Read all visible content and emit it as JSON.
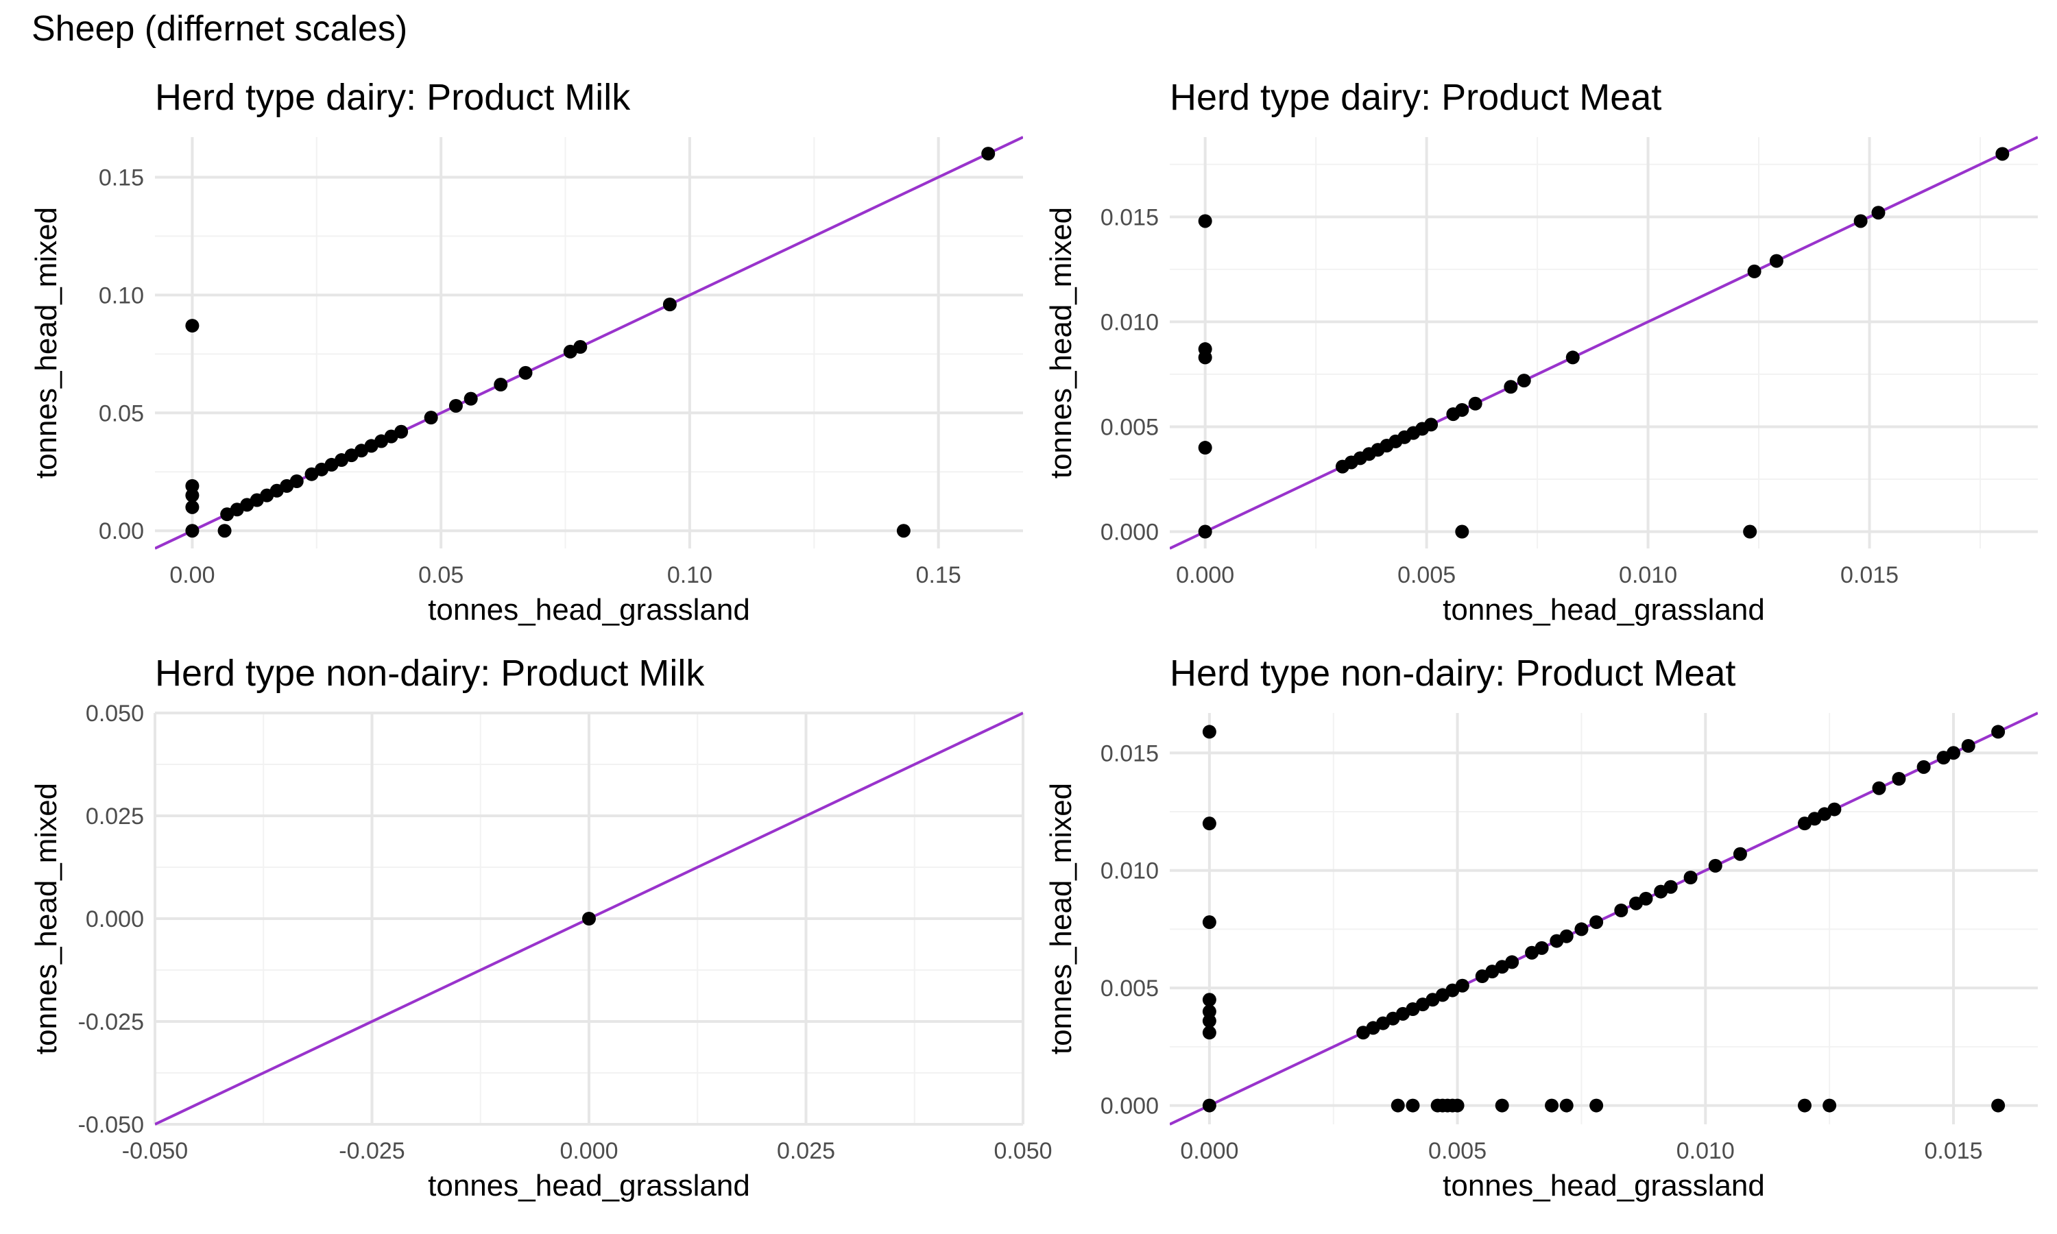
{
  "title": "Sheep (differnet scales)",
  "colors": {
    "line": "#9933cc",
    "point": "#000000",
    "grid_major": "#e6e6e6",
    "grid_minor": "#f2f2f2"
  },
  "chart_data": [
    {
      "type": "scatter",
      "title": "Herd type dairy: Product Milk",
      "xlabel": "tonnes_head_grassland",
      "ylabel": "tonnes_head_mixed",
      "xlim": [
        -0.0075,
        0.167
      ],
      "ylim": [
        -0.0075,
        0.167
      ],
      "xticks": [
        0,
        0.05,
        0.1,
        0.15
      ],
      "yticks": [
        0,
        0.05,
        0.1,
        0.15
      ],
      "tick_labels_x": [
        "0.00",
        "0.05",
        "0.10",
        "0.15"
      ],
      "tick_labels_y": [
        "0.00",
        "0.05",
        "0.10",
        "0.15"
      ],
      "reference_line": "y = x",
      "grid": true,
      "points": [
        [
          0,
          0
        ],
        [
          0,
          0.01
        ],
        [
          0,
          0.015
        ],
        [
          0,
          0.019
        ],
        [
          0,
          0.087
        ],
        [
          0.0065,
          0
        ],
        [
          0.143,
          0
        ],
        [
          0.007,
          0.007
        ],
        [
          0.009,
          0.009
        ],
        [
          0.011,
          0.011
        ],
        [
          0.013,
          0.013
        ],
        [
          0.015,
          0.015
        ],
        [
          0.017,
          0.017
        ],
        [
          0.019,
          0.019
        ],
        [
          0.021,
          0.021
        ],
        [
          0.024,
          0.024
        ],
        [
          0.026,
          0.026
        ],
        [
          0.028,
          0.028
        ],
        [
          0.03,
          0.03
        ],
        [
          0.032,
          0.032
        ],
        [
          0.034,
          0.034
        ],
        [
          0.036,
          0.036
        ],
        [
          0.038,
          0.038
        ],
        [
          0.04,
          0.04
        ],
        [
          0.042,
          0.042
        ],
        [
          0.048,
          0.048
        ],
        [
          0.053,
          0.053
        ],
        [
          0.056,
          0.056
        ],
        [
          0.062,
          0.062
        ],
        [
          0.067,
          0.067
        ],
        [
          0.076,
          0.076
        ],
        [
          0.078,
          0.078
        ],
        [
          0.096,
          0.096
        ],
        [
          0.16,
          0.16
        ]
      ]
    },
    {
      "type": "scatter",
      "title": "Herd type dairy: Product Meat",
      "xlabel": "tonnes_head_grassland",
      "ylabel": "tonnes_head_mixed",
      "xlim": [
        -0.0008,
        0.0188
      ],
      "ylim": [
        -0.0008,
        0.0188
      ],
      "xticks": [
        0,
        0.005,
        0.01,
        0.015
      ],
      "yticks": [
        0,
        0.005,
        0.01,
        0.015
      ],
      "tick_labels_x": [
        "0.000",
        "0.005",
        "0.010",
        "0.015"
      ],
      "tick_labels_y": [
        "0.000",
        "0.005",
        "0.010",
        "0.015"
      ],
      "reference_line": "y = x",
      "grid": true,
      "points": [
        [
          0,
          0
        ],
        [
          0,
          0.004
        ],
        [
          0,
          0.0083
        ],
        [
          0,
          0.0087
        ],
        [
          0,
          0.0148
        ],
        [
          0.0058,
          0
        ],
        [
          0.0123,
          0
        ],
        [
          0.0031,
          0.0031
        ],
        [
          0.0033,
          0.0033
        ],
        [
          0.0035,
          0.0035
        ],
        [
          0.0037,
          0.0037
        ],
        [
          0.0039,
          0.0039
        ],
        [
          0.0041,
          0.0041
        ],
        [
          0.0043,
          0.0043
        ],
        [
          0.0045,
          0.0045
        ],
        [
          0.0047,
          0.0047
        ],
        [
          0.0049,
          0.0049
        ],
        [
          0.0051,
          0.0051
        ],
        [
          0.0056,
          0.0056
        ],
        [
          0.0058,
          0.0058
        ],
        [
          0.0061,
          0.0061
        ],
        [
          0.0069,
          0.0069
        ],
        [
          0.0072,
          0.0072
        ],
        [
          0.0083,
          0.0083
        ],
        [
          0.0124,
          0.0124
        ],
        [
          0.0129,
          0.0129
        ],
        [
          0.0148,
          0.0148
        ],
        [
          0.0152,
          0.0152
        ],
        [
          0.018,
          0.018
        ]
      ]
    },
    {
      "type": "scatter",
      "title": "Herd type non-dairy: Product Milk",
      "xlabel": "tonnes_head_grassland",
      "ylabel": "tonnes_head_mixed",
      "xlim": [
        -0.05,
        0.05
      ],
      "ylim": [
        -0.05,
        0.05
      ],
      "xticks": [
        -0.05,
        -0.025,
        0,
        0.025,
        0.05
      ],
      "yticks": [
        -0.05,
        -0.025,
        0,
        0.025,
        0.05
      ],
      "tick_labels_x": [
        "-0.050",
        "-0.025",
        "0.000",
        "0.025",
        "0.050"
      ],
      "tick_labels_y": [
        "-0.050",
        "-0.025",
        "0.000",
        "0.025",
        "0.050"
      ],
      "reference_line": "y = x",
      "grid": true,
      "points": [
        [
          0,
          0
        ]
      ]
    },
    {
      "type": "scatter",
      "title": "Herd type non-dairy: Product Meat",
      "xlabel": "tonnes_head_grassland",
      "ylabel": "tonnes_head_mixed",
      "xlim": [
        -0.0008,
        0.0167
      ],
      "ylim": [
        -0.0008,
        0.0167
      ],
      "xticks": [
        0,
        0.005,
        0.01,
        0.015
      ],
      "yticks": [
        0,
        0.005,
        0.01,
        0.015
      ],
      "tick_labels_x": [
        "0.000",
        "0.005",
        "0.010",
        "0.015"
      ],
      "tick_labels_y": [
        "0.000",
        "0.005",
        "0.010",
        "0.015"
      ],
      "reference_line": "y = x",
      "grid": true,
      "points": [
        [
          0,
          0
        ],
        [
          0,
          0.0031
        ],
        [
          0,
          0.0036
        ],
        [
          0,
          0.004
        ],
        [
          0,
          0.0045
        ],
        [
          0,
          0.0078
        ],
        [
          0,
          0.012
        ],
        [
          0,
          0.0159
        ],
        [
          0.0038,
          0
        ],
        [
          0.0041,
          0
        ],
        [
          0.0046,
          0
        ],
        [
          0.0047,
          0
        ],
        [
          0.0048,
          0
        ],
        [
          0.0049,
          0
        ],
        [
          0.005,
          0
        ],
        [
          0.0059,
          0
        ],
        [
          0.0069,
          0
        ],
        [
          0.0072,
          0
        ],
        [
          0.0078,
          0
        ],
        [
          0.012,
          0
        ],
        [
          0.0125,
          0
        ],
        [
          0.0159,
          0
        ],
        [
          0.0031,
          0.0031
        ],
        [
          0.0033,
          0.0033
        ],
        [
          0.0035,
          0.0035
        ],
        [
          0.0037,
          0.0037
        ],
        [
          0.0039,
          0.0039
        ],
        [
          0.0041,
          0.0041
        ],
        [
          0.0043,
          0.0043
        ],
        [
          0.0045,
          0.0045
        ],
        [
          0.0047,
          0.0047
        ],
        [
          0.0049,
          0.0049
        ],
        [
          0.0051,
          0.0051
        ],
        [
          0.0055,
          0.0055
        ],
        [
          0.0057,
          0.0057
        ],
        [
          0.0059,
          0.0059
        ],
        [
          0.0061,
          0.0061
        ],
        [
          0.0065,
          0.0065
        ],
        [
          0.0067,
          0.0067
        ],
        [
          0.007,
          0.007
        ],
        [
          0.0072,
          0.0072
        ],
        [
          0.0075,
          0.0075
        ],
        [
          0.0078,
          0.0078
        ],
        [
          0.0083,
          0.0083
        ],
        [
          0.0086,
          0.0086
        ],
        [
          0.0088,
          0.0088
        ],
        [
          0.0091,
          0.0091
        ],
        [
          0.0093,
          0.0093
        ],
        [
          0.0097,
          0.0097
        ],
        [
          0.0102,
          0.0102
        ],
        [
          0.0107,
          0.0107
        ],
        [
          0.012,
          0.012
        ],
        [
          0.0122,
          0.0122
        ],
        [
          0.0124,
          0.0124
        ],
        [
          0.0126,
          0.0126
        ],
        [
          0.0135,
          0.0135
        ],
        [
          0.0139,
          0.0139
        ],
        [
          0.0144,
          0.0144
        ],
        [
          0.0148,
          0.0148
        ],
        [
          0.015,
          0.015
        ],
        [
          0.0153,
          0.0153
        ],
        [
          0.0159,
          0.0159
        ]
      ]
    }
  ]
}
